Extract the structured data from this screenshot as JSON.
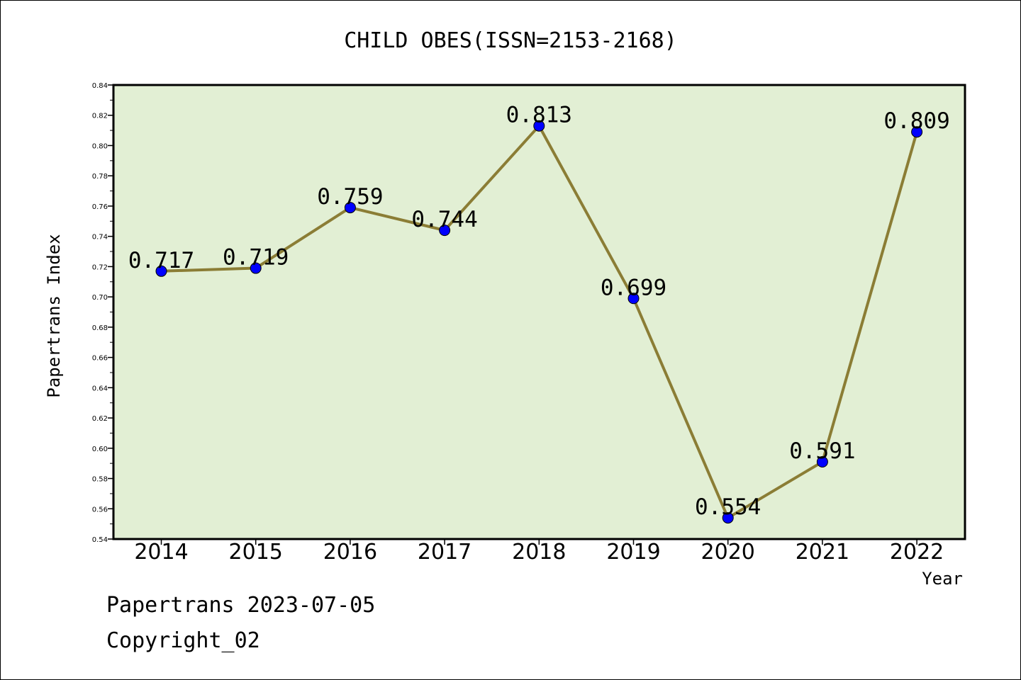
{
  "chart_data": {
    "type": "line",
    "title": "CHILD OBES(ISSN=2153-2168)",
    "xlabel": "Year",
    "ylabel": "Papertrans Index",
    "categories": [
      "2014",
      "2015",
      "2016",
      "2017",
      "2018",
      "2019",
      "2020",
      "2021",
      "2022"
    ],
    "values": [
      0.717,
      0.719,
      0.759,
      0.744,
      0.813,
      0.699,
      0.554,
      0.591,
      0.809
    ],
    "data_labels": [
      "0.717",
      "0.719",
      "0.759",
      "0.744",
      "0.813",
      "0.699",
      "0.554",
      "0.591",
      "0.809"
    ],
    "ylim": [
      0.54,
      0.84
    ],
    "yticks": [
      "0.54",
      "0.56",
      "0.58",
      "0.60",
      "0.62",
      "0.64",
      "0.66",
      "0.68",
      "0.70",
      "0.72",
      "0.74",
      "0.76",
      "0.78",
      "0.80",
      "0.82",
      "0.84"
    ],
    "grid": false,
    "line_color": "#8b7d35",
    "marker_color": "#0000ff",
    "plot_background": "#e2efd4"
  },
  "footer": {
    "stamp": "Papertrans 2023-07-05",
    "copyright": "Copyright_02"
  }
}
